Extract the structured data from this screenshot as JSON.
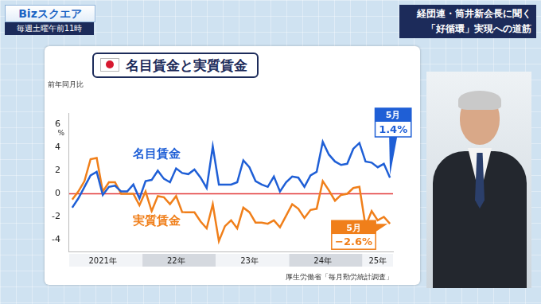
{
  "header": {
    "logo": "Bizスクエア",
    "schedule": "毎週土曜午前11時",
    "headline": [
      "経団連・筒井新会長に聞く",
      "「好循環」実現への道筋"
    ]
  },
  "chart_data": {
    "type": "line",
    "title": "名目賃金と実質賃金",
    "y_label": "前年同月比",
    "y_unit": "%",
    "source": "厚生労働省「毎月勤労統計調査」",
    "categories": [
      null,
      null,
      null,
      null,
      null,
      "2021年",
      null,
      null,
      null,
      null,
      null,
      null,
      null,
      null,
      null,
      null,
      null,
      "22年",
      null,
      null,
      null,
      null,
      null,
      null,
      null,
      null,
      null,
      null,
      null,
      "23年",
      null,
      null,
      null,
      null,
      null,
      null,
      null,
      null,
      null,
      null,
      null,
      "24年",
      null,
      null,
      null,
      null,
      null,
      null,
      null,
      null,
      "25年",
      null,
      null
    ],
    "series": [
      {
        "name": "名目賃金",
        "color": "#1f5fd6",
        "values": [
          -1.2,
          -0.4,
          0.6,
          1.6,
          1.9,
          -0.1,
          0.6,
          0.7,
          0.2,
          0.2,
          0.8,
          -0.4,
          1.1,
          1.2,
          2.0,
          1.3,
          1.0,
          2.2,
          1.8,
          1.7,
          2.1,
          1.4,
          0.5,
          4.1,
          0.8,
          0.8,
          0.8,
          1.0,
          2.9,
          2.3,
          1.1,
          0.8,
          0.6,
          1.5,
          0.2,
          1.0,
          1.5,
          1.4,
          0.6,
          1.6,
          1.9,
          4.5,
          3.4,
          2.8,
          2.5,
          2.6,
          3.9,
          4.4,
          2.8,
          2.7,
          2.3,
          2.6,
          1.4
        ]
      },
      {
        "name": "実質賃金",
        "color": "#f07f1a",
        "values": [
          -0.5,
          0.2,
          1.1,
          3.0,
          3.1,
          0.2,
          1.0,
          1.0,
          0.0,
          0.0,
          0.0,
          -1.0,
          0.2,
          -1.5,
          -0.2,
          -0.3,
          -0.9,
          -0.2,
          -1.6,
          -1.6,
          -1.6,
          -2.4,
          -3.0,
          -0.9,
          -4.1,
          -2.8,
          -2.3,
          -3.0,
          -1.2,
          -1.6,
          -2.5,
          -2.5,
          -2.6,
          -2.3,
          -2.9,
          -1.9,
          -0.9,
          -1.3,
          -2.1,
          -1.4,
          -1.3,
          1.1,
          0.3,
          -0.6,
          -0.1,
          0.0,
          0.5,
          0.6,
          -2.8,
          -1.5,
          -2.3,
          -2.0,
          -2.6
        ]
      }
    ],
    "ylim": [
      -5,
      7
    ],
    "yticks": [
      -4,
      -2,
      0,
      2,
      4,
      6
    ],
    "grid": false,
    "annotations": [
      {
        "series": "名目賃金",
        "label": "5月",
        "value": 1.4,
        "value_label": "1.4%"
      },
      {
        "series": "実質賃金",
        "label": "5月",
        "value": -2.6,
        "value_label": "−2.6%"
      }
    ]
  }
}
